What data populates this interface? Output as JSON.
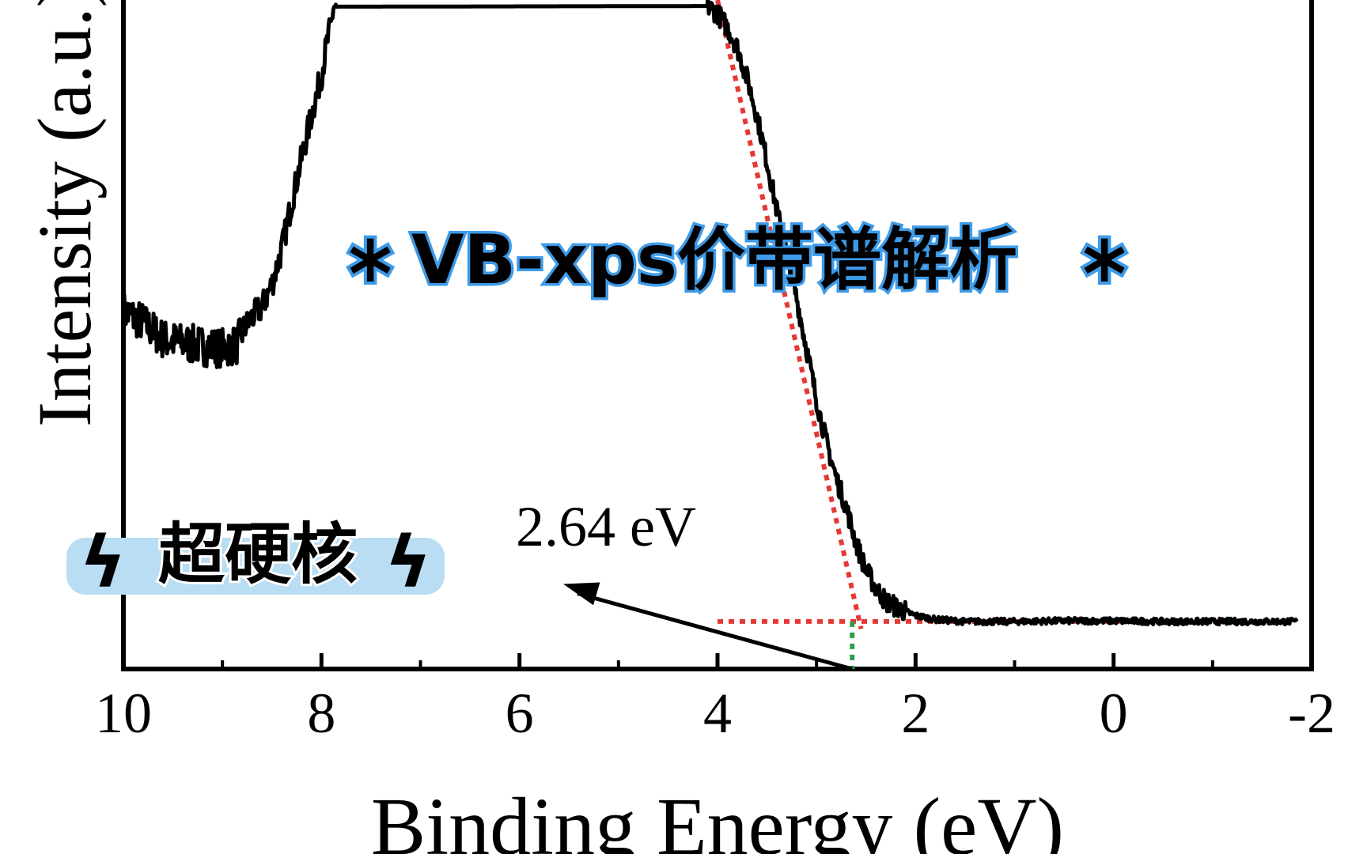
{
  "chart_data": {
    "type": "line",
    "xlabel": "Binding Energy (eV)",
    "ylabel": "Intensity (a.u.)",
    "xlim": [
      10,
      -2
    ],
    "x_reversed": true,
    "x_ticks": [
      10,
      8,
      6,
      4,
      2,
      0,
      -2
    ],
    "x_tick_labels": [
      "10",
      "8",
      "6",
      "4",
      "2",
      "0",
      "-2"
    ],
    "y_ticks_shown": false,
    "ylim": [
      0,
      100
    ],
    "series": [
      {
        "color": "#000000",
        "style": "solid",
        "x": [
          10.0,
          9.8,
          9.6,
          9.4,
          9.2,
          9.0,
          8.85,
          8.8,
          8.7,
          8.6,
          8.5,
          8.4,
          8.3,
          8.2,
          8.1,
          8.0,
          7.95,
          7.9,
          7.88,
          4.1,
          4.0,
          3.9,
          3.8,
          3.7,
          3.6,
          3.5,
          3.4,
          3.3,
          3.2,
          3.1,
          3.0,
          2.9,
          2.8,
          2.7,
          2.6,
          2.5,
          2.4,
          2.3,
          2.2,
          2.1,
          2.0,
          1.8,
          1.5,
          1.0,
          0.5,
          0.0,
          -0.5,
          -1.0,
          -1.5,
          -1.85
        ],
        "y": [
          53.5,
          51.8,
          49.3,
          48.7,
          48.3,
          48.0,
          48.5,
          50.5,
          52.6,
          54.1,
          57.5,
          62.8,
          69.8,
          76.4,
          82.8,
          88.8,
          93.1,
          96.4,
          99.0,
          99.1,
          98.0,
          95.9,
          92.9,
          88.2,
          82.6,
          75.8,
          68.5,
          61.9,
          55.4,
          47.8,
          40.2,
          33.9,
          28.5,
          24.2,
          18.8,
          14.8,
          12.1,
          10.1,
          9.3,
          8.6,
          8.0,
          7.4,
          7.1,
          7.1,
          7.2,
          7.2,
          7.1,
          7.1,
          7.1,
          7.1
        ]
      }
    ],
    "annotations": [
      {
        "text": "2.64 eV",
        "arrow_to": [
          2.64,
          0
        ],
        "arrow_from": [
          4.0,
          12.0
        ],
        "valence_band_edge_eV": 2.64
      }
    ],
    "guide_lines": [
      {
        "color": "#e53935",
        "style": "dotted",
        "role": "linear-fit",
        "points": [
          [
            4.0,
            100.0
          ],
          [
            2.55,
            6.0
          ]
        ]
      },
      {
        "color": "#e53935",
        "style": "dotted",
        "role": "baseline",
        "points": [
          [
            4.0,
            7.1
          ],
          [
            -1.35,
            7.1
          ]
        ]
      },
      {
        "color": "#2e9e4a",
        "style": "dotted",
        "role": "intercept-drop",
        "points": [
          [
            2.64,
            7.1
          ],
          [
            2.64,
            0
          ]
        ]
      }
    ]
  },
  "overlay": {
    "banner_text": "VB-xps价带谱解析",
    "sticker_text": "超硬核",
    "banner_fill": "#f7b6d2",
    "banner_outline": "#3d9be9",
    "sticker_bg": "#b9ddf2",
    "sticker_text_color": "#3aa0d8",
    "sparkle_color": "#f6b7d0"
  }
}
